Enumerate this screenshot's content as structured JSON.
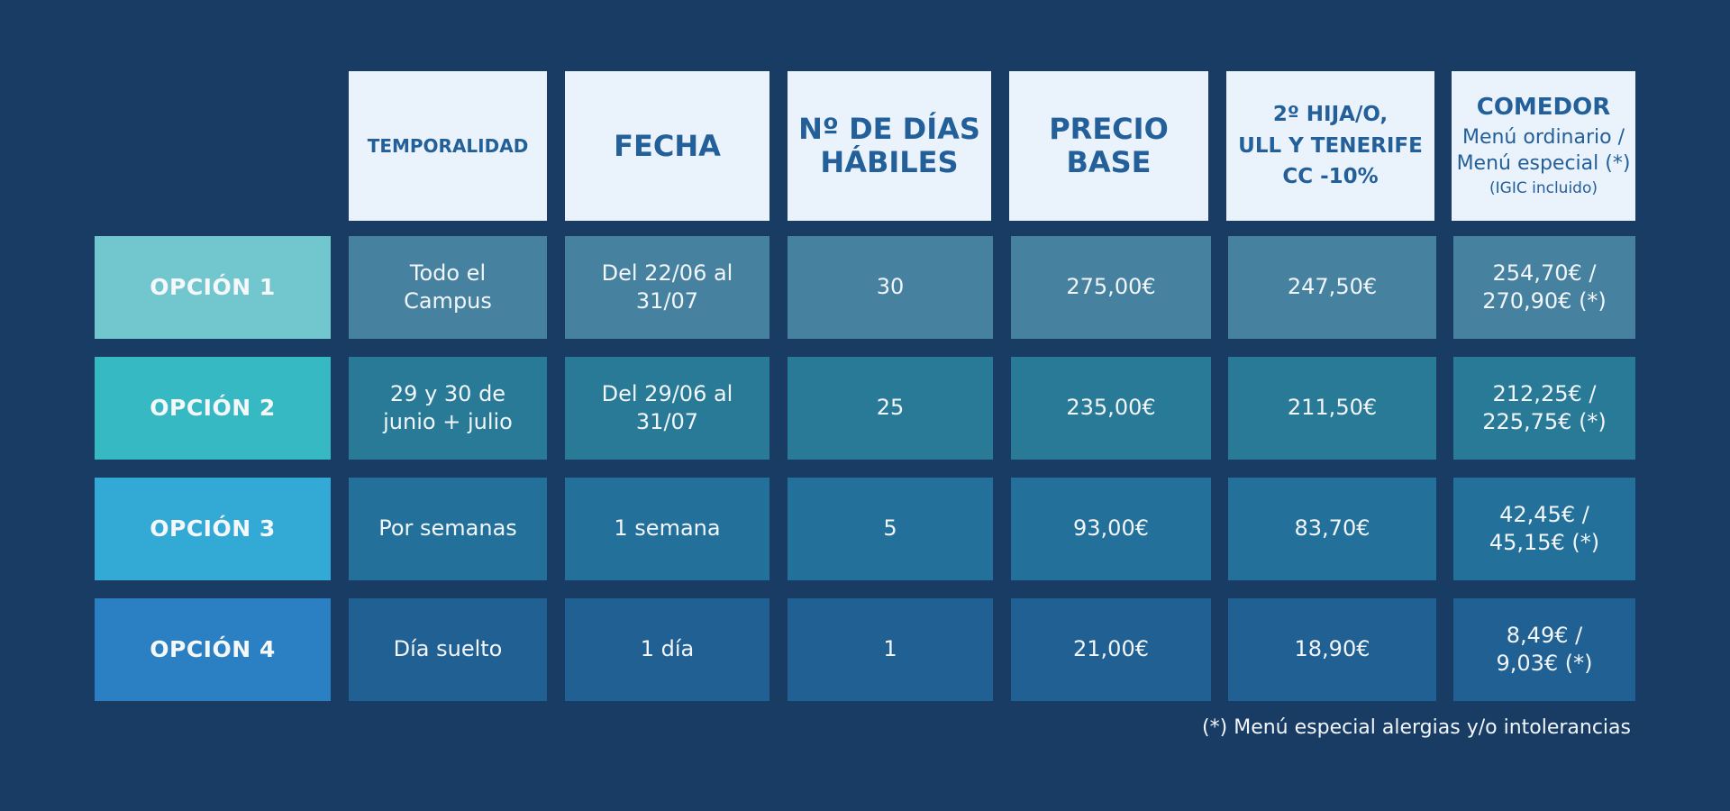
{
  "colors": {
    "background": "#183c64",
    "header_bg": "#eaf2fc",
    "header_text": "#23609a",
    "options": [
      "#72c7cf",
      "#36b9c3",
      "#33a9d5",
      "#2a80c2"
    ],
    "rows": [
      "#46829f",
      "#287a96",
      "#23709a",
      "#216092"
    ]
  },
  "headers": {
    "temporalidad": "TEMPORALIDAD",
    "fecha": "FECHA",
    "dias": "Nº DE DÍAS\nHÁBILES",
    "precio": "PRECIO\nBASE",
    "descuento": "2º HIJA/O,\nULL Y TENERIFE\nCC -10%",
    "comedor": {
      "title": "COMEDOR",
      "subtitle": "Menú ordinario /\nMenú especial (*)",
      "note": "(IGIC incluido)"
    }
  },
  "rows": [
    {
      "option": "OPCIÓN 1",
      "temporalidad": "Todo el\nCampus",
      "fecha": "Del 22/06 al\n31/07",
      "dias": "30",
      "precio": "275,00€",
      "descuento": "247,50€",
      "comedor": "254,70€ /\n270,90€ (*)"
    },
    {
      "option": "OPCIÓN 2",
      "temporalidad": "29 y 30 de\njunio + julio",
      "fecha": "Del 29/06 al\n31/07",
      "dias": "25",
      "precio": "235,00€",
      "descuento": "211,50€",
      "comedor": "212,25€ /\n225,75€ (*)"
    },
    {
      "option": "OPCIÓN 3",
      "temporalidad": "Por semanas",
      "fecha": "1 semana",
      "dias": "5",
      "precio": "93,00€",
      "descuento": "83,70€",
      "comedor": "42,45€ /\n45,15€ (*)"
    },
    {
      "option": "OPCIÓN 4",
      "temporalidad": "Día suelto",
      "fecha": "1 día",
      "dias": "1",
      "precio": "21,00€",
      "descuento": "18,90€",
      "comedor": "8,49€ /\n9,03€ (*)"
    }
  ],
  "footnote": "(*) Menú especial alergias y/o intolerancias"
}
